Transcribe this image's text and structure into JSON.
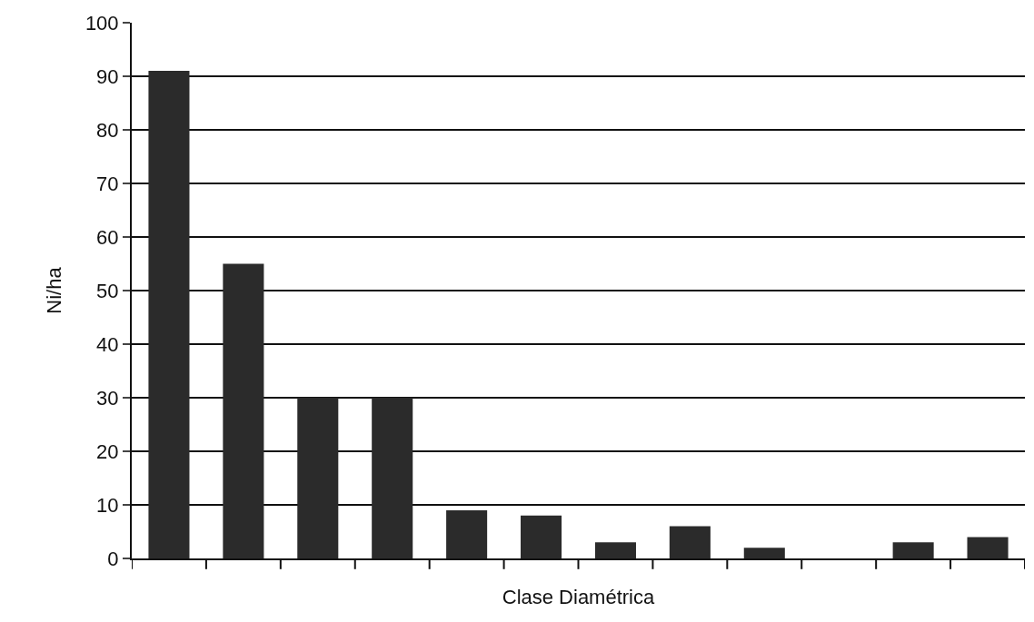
{
  "chart_data": {
    "type": "bar",
    "xlabel": "Clase Diamétrica",
    "ylabel": "Ni/ha",
    "categories": [
      null,
      null,
      null,
      null,
      null,
      null,
      null,
      null,
      null,
      null,
      null,
      null
    ],
    "values": [
      91,
      55,
      30,
      30,
      9,
      8,
      3,
      6,
      2,
      0,
      3,
      4
    ],
    "color": "#2b2b2b",
    "ylim": [
      0,
      100
    ],
    "yticks": [
      0,
      10,
      20,
      30,
      40,
      50,
      60,
      70,
      80,
      90,
      100
    ],
    "grid": "y",
    "legend": false
  }
}
